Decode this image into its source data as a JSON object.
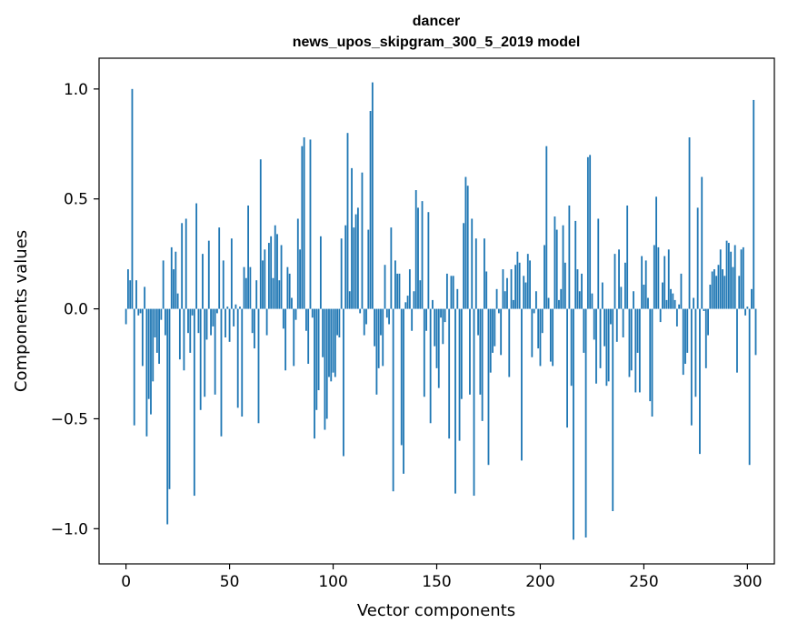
{
  "chart_data": {
    "type": "bar",
    "title": "dancer",
    "subtitle": "news_upos_skipgram_300_5_2019 model",
    "xlabel": "Vector components",
    "ylabel": "Components values",
    "xlim": [
      -13,
      313
    ],
    "ylim": [
      -1.16,
      1.14
    ],
    "xticks": [
      0,
      50,
      100,
      150,
      200,
      250,
      300
    ],
    "yticks": [
      -1.0,
      -0.5,
      0.0,
      0.5,
      1.0
    ],
    "ytick_labels": [
      "−1.0",
      "−0.5",
      "0.0",
      "0.5",
      "1.0"
    ],
    "bar_color": "#1f77b4",
    "values": [
      -0.07,
      0.18,
      0.13,
      1.0,
      -0.53,
      0.13,
      -0.03,
      -0.02,
      -0.26,
      0.1,
      -0.58,
      -0.41,
      -0.48,
      -0.33,
      -0.13,
      -0.2,
      -0.25,
      -0.05,
      0.22,
      -0.12,
      -0.98,
      -0.82,
      0.28,
      0.18,
      0.26,
      0.07,
      -0.23,
      0.39,
      -0.28,
      0.41,
      -0.11,
      -0.2,
      -0.03,
      -0.85,
      0.48,
      -0.11,
      -0.46,
      0.25,
      -0.4,
      -0.14,
      0.31,
      -0.12,
      -0.08,
      -0.39,
      -0.02,
      0.37,
      -0.58,
      0.22,
      -0.13,
      0.01,
      -0.15,
      0.32,
      -0.08,
      0.02,
      -0.45,
      0.01,
      -0.49,
      0.19,
      0.14,
      0.47,
      0.19,
      -0.11,
      -0.18,
      0.13,
      -0.52,
      0.68,
      0.22,
      0.27,
      -0.12,
      0.3,
      0.33,
      0.14,
      0.38,
      0.34,
      0.13,
      0.29,
      -0.09,
      -0.28,
      0.19,
      0.16,
      0.05,
      -0.26,
      -0.05,
      0.41,
      0.27,
      0.74,
      0.78,
      -0.1,
      -0.25,
      0.77,
      -0.04,
      -0.59,
      -0.46,
      -0.37,
      0.33,
      -0.22,
      -0.55,
      -0.5,
      -0.31,
      -0.33,
      -0.29,
      -0.31,
      -0.12,
      -0.13,
      0.32,
      -0.67,
      0.38,
      0.8,
      0.08,
      0.64,
      0.37,
      0.43,
      0.46,
      -0.02,
      0.62,
      -0.12,
      -0.07,
      0.36,
      0.9,
      1.03,
      -0.17,
      -0.39,
      -0.27,
      -0.12,
      -0.26,
      0.2,
      -0.04,
      -0.07,
      0.37,
      -0.83,
      0.22,
      0.16,
      0.16,
      -0.62,
      -0.75,
      0.03,
      0.06,
      0.18,
      -0.1,
      0.08,
      0.54,
      0.46,
      0.13,
      0.49,
      -0.4,
      -0.1,
      0.44,
      -0.52,
      0.04,
      -0.17,
      -0.27,
      -0.36,
      -0.04,
      -0.16,
      -0.06,
      0.16,
      -0.59,
      0.15,
      0.15,
      -0.84,
      0.09,
      -0.6,
      -0.41,
      0.39,
      0.6,
      0.56,
      -0.39,
      0.41,
      -0.85,
      0.32,
      -0.12,
      -0.39,
      -0.51,
      0.32,
      0.17,
      -0.71,
      -0.29,
      -0.2,
      -0.17,
      0.09,
      -0.02,
      -0.21,
      0.18,
      0.08,
      0.14,
      -0.31,
      0.18,
      0.04,
      0.2,
      0.26,
      0.21,
      -0.69,
      0.15,
      0.12,
      0.25,
      0.22,
      -0.22,
      -0.02,
      0.08,
      -0.18,
      -0.26,
      -0.11,
      0.29,
      0.74,
      0.05,
      -0.24,
      -0.26,
      0.42,
      0.36,
      0.04,
      0.09,
      0.38,
      0.21,
      -0.54,
      0.47,
      -0.35,
      -1.05,
      0.4,
      0.18,
      0.08,
      0.16,
      -0.2,
      -1.04,
      0.69,
      0.7,
      0.07,
      -0.14,
      -0.34,
      0.41,
      -0.27,
      0.12,
      -0.17,
      -0.35,
      -0.33,
      -0.07,
      -0.92,
      0.25,
      -0.15,
      0.27,
      0.1,
      -0.13,
      0.21,
      0.47,
      -0.31,
      -0.28,
      0.08,
      -0.38,
      -0.2,
      -0.38,
      0.24,
      0.11,
      0.22,
      0.05,
      -0.42,
      -0.49,
      0.29,
      0.51,
      0.28,
      -0.06,
      0.12,
      0.24,
      0.04,
      0.27,
      0.09,
      0.07,
      0.04,
      -0.08,
      0.02,
      0.16,
      -0.3,
      -0.25,
      -0.2,
      0.78,
      -0.53,
      0.05,
      -0.4,
      0.46,
      -0.66,
      0.6,
      -0.01,
      -0.27,
      -0.12,
      0.11,
      0.17,
      0.18,
      0.15,
      0.2,
      0.27,
      0.18,
      0.15,
      0.31,
      0.3,
      0.26,
      0.19,
      0.29,
      -0.29,
      0.15,
      0.27,
      0.28,
      -0.03,
      0.01,
      -0.71,
      0.09,
      0.95,
      -0.21
    ]
  }
}
